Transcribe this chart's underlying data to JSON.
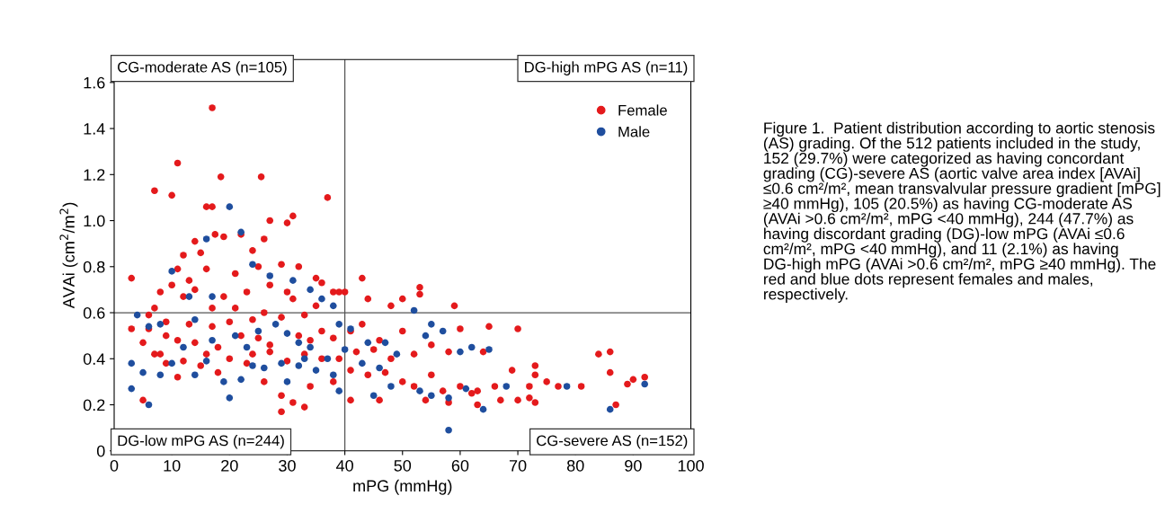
{
  "chart_data": {
    "type": "scatter",
    "xlabel": "mPG (mmHg)",
    "ylabel": "AVAi (cm$^{2}$/m$^{2}$)",
    "xlim": [
      0,
      100
    ],
    "ylim": [
      0,
      1.7
    ],
    "xticks": [
      0,
      10,
      20,
      30,
      40,
      50,
      60,
      70,
      80,
      90,
      100
    ],
    "yticks": [
      0,
      0.2,
      0.4,
      0.6,
      0.8,
      {
        "value": 1,
        "label": "1.0"
      },
      1.2,
      1.4,
      1.6
    ],
    "grid": false,
    "legend": "top right",
    "marker": "circle",
    "ref_lines": [
      {
        "axis": "x",
        "value": 40,
        "color": "#555555"
      },
      {
        "axis": "y",
        "value": 0.6,
        "color": "#555555"
      }
    ],
    "series": [
      {
        "name": "Female",
        "color": "#e41a1c",
        "x": [
          17,
          11,
          7,
          10,
          18.5,
          25.5,
          37,
          31,
          16,
          17,
          30,
          27,
          26,
          22,
          17.5,
          19,
          14,
          15,
          24,
          12,
          11,
          10,
          13,
          16,
          21,
          25,
          29,
          32,
          27,
          35,
          36,
          30,
          23,
          19,
          14,
          12,
          8,
          6,
          3,
          7,
          9,
          17,
          21,
          26,
          31,
          38,
          39,
          40,
          43,
          44,
          50,
          53,
          53,
          59,
          48,
          35,
          33,
          29,
          24,
          20,
          17,
          13,
          9,
          6,
          3,
          5,
          8,
          11,
          14,
          18,
          22,
          25,
          27,
          32,
          34,
          36,
          38,
          41,
          43,
          46,
          50,
          55,
          60,
          65,
          70,
          64,
          58,
          52,
          48,
          45,
          42,
          39,
          36,
          33,
          30,
          27,
          24,
          20,
          16,
          12,
          9,
          7,
          5,
          11,
          15,
          18,
          23,
          26,
          29,
          31,
          34,
          38,
          41,
          44,
          47,
          50,
          52,
          55,
          57,
          60,
          63,
          66,
          69,
          72,
          73,
          73,
          75,
          70,
          72,
          73,
          77,
          81,
          84,
          86,
          86,
          90,
          92,
          89,
          87,
          63,
          58,
          54,
          46,
          41,
          29,
          33,
          62,
          67
        ],
        "values": [
          1.49,
          1.25,
          1.13,
          1.11,
          1.19,
          1.19,
          1.1,
          1.02,
          1.06,
          1.06,
          0.99,
          1.0,
          0.92,
          0.94,
          0.94,
          0.93,
          0.91,
          0.86,
          0.87,
          0.85,
          0.79,
          0.72,
          0.74,
          0.79,
          0.77,
          0.8,
          0.81,
          0.8,
          0.72,
          0.75,
          0.73,
          0.69,
          0.69,
          0.67,
          0.7,
          0.67,
          0.69,
          0.59,
          0.75,
          0.62,
          0.56,
          0.62,
          0.62,
          0.6,
          0.66,
          0.69,
          0.69,
          0.69,
          0.75,
          0.66,
          0.66,
          0.71,
          0.68,
          0.63,
          0.63,
          0.63,
          0.59,
          0.58,
          0.57,
          0.56,
          0.54,
          0.55,
          0.5,
          0.53,
          0.53,
          0.47,
          0.42,
          0.48,
          0.47,
          0.45,
          0.5,
          0.49,
          0.46,
          0.5,
          0.48,
          0.52,
          0.49,
          0.52,
          0.55,
          0.48,
          0.52,
          0.46,
          0.53,
          0.54,
          0.53,
          0.43,
          0.43,
          0.42,
          0.4,
          0.44,
          0.43,
          0.4,
          0.4,
          0.42,
          0.39,
          0.43,
          0.42,
          0.4,
          0.42,
          0.39,
          0.38,
          0.42,
          0.22,
          0.32,
          0.37,
          0.34,
          0.38,
          0.3,
          0.24,
          0.21,
          0.28,
          0.3,
          0.35,
          0.33,
          0.34,
          0.3,
          0.28,
          0.33,
          0.26,
          0.28,
          0.26,
          0.28,
          0.35,
          0.28,
          0.37,
          0.33,
          0.3,
          0.22,
          0.23,
          0.21,
          0.28,
          0.28,
          0.42,
          0.43,
          0.34,
          0.31,
          0.32,
          0.29,
          0.2,
          0.2,
          0.21,
          0.22,
          0.22,
          0.22,
          0.17,
          0.19,
          0.25,
          0.22
        ]
      },
      {
        "name": "Male",
        "color": "#1f4e9e",
        "x": [
          20,
          22,
          16,
          24,
          17,
          13,
          10,
          27,
          31,
          34,
          38,
          36,
          4,
          6,
          8,
          14,
          17,
          21,
          23,
          25,
          28,
          30,
          32,
          34,
          37,
          39,
          41,
          44,
          47,
          52,
          55,
          54,
          57,
          60,
          62,
          65,
          49,
          46,
          43,
          40,
          38,
          35,
          32,
          29,
          26,
          22,
          19,
          14,
          10,
          8,
          5,
          3,
          3,
          6,
          12,
          16,
          24,
          33,
          45,
          48,
          53,
          55,
          58,
          61,
          64,
          58,
          68,
          78.5,
          86,
          92,
          39,
          30,
          20
        ],
        "values": [
          1.06,
          0.95,
          0.92,
          0.81,
          0.67,
          0.67,
          0.78,
          0.76,
          0.74,
          0.7,
          0.63,
          0.66,
          0.59,
          0.54,
          0.55,
          0.57,
          0.48,
          0.5,
          0.45,
          0.52,
          0.55,
          0.51,
          0.47,
          0.45,
          0.4,
          0.55,
          0.53,
          0.47,
          0.47,
          0.61,
          0.55,
          0.5,
          0.52,
          0.43,
          0.45,
          0.44,
          0.42,
          0.36,
          0.38,
          0.44,
          0.33,
          0.35,
          0.37,
          0.38,
          0.36,
          0.31,
          0.3,
          0.33,
          0.38,
          0.33,
          0.34,
          0.38,
          0.27,
          0.2,
          0.45,
          0.39,
          0.37,
          0.4,
          0.24,
          0.28,
          0.26,
          0.24,
          0.23,
          0.27,
          0.18,
          0.09,
          0.28,
          0.28,
          0.18,
          0.29,
          0.26,
          0.3,
          0.23
        ]
      }
    ],
    "annotations": [
      "CG-moderate AS (n=105)",
      "DG-high mPG AS (n=11)",
      "DG-low mPG AS (n=244)",
      "CG-severe AS (n=152)",
      "Figure 1.  Patient distribution according to aortic stenosis (AS) grading. Of the 512 patients included in the study, 152 (29.7%) were categorized as having concordant grading (CG)-severe AS (aortic valve area index [AVAi] ≤0.6 cm²/m², mean transvalvular pressure gradient [mPG] ≥40 mmHg), 105 (20.5%) as having CG-moderate AS (AVAi >0.6 cm²/m², mPG <40 mmHg), 244 (47.7%) as having discordant grading (DG)-low mPG (AVAi ≤0.6 cm²/m², mPG <40 mmHg), and 11 (2.1%) as having DG-high mPG (AVAi >0.6 cm²/m², mPG ≥40 mmHg). The red and blue dots represent females and males, respectively."
    ]
  }
}
